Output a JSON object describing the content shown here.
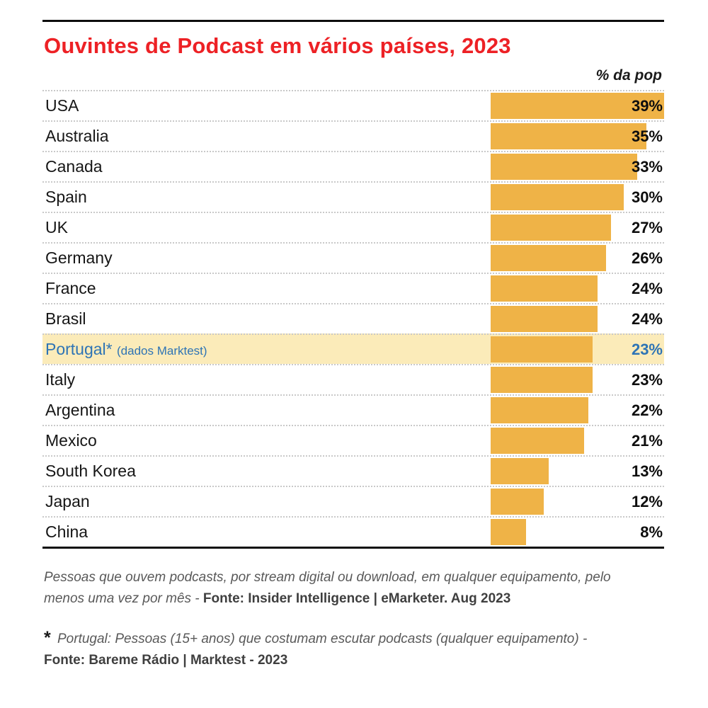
{
  "colors": {
    "title_color": "#ED2125",
    "bar_color": "#EFB347",
    "highlight_bg": "#FBEBB9",
    "accent_blue": "#2E74B5"
  },
  "chart_data": {
    "type": "bar",
    "orientation": "horizontal",
    "title": "Ouvintes de Podcast em vários países, 2023",
    "unit_label": "% da pop",
    "unit": "%",
    "axis_max": 39,
    "legend": "none",
    "grid": "dotted row separators",
    "categories": [
      "USA",
      "Australia",
      "Canada",
      "Spain",
      "UK",
      "Germany",
      "France",
      "Brasil",
      "Portugal*",
      "Italy",
      "Argentina",
      "Mexico",
      "South Korea",
      "Japan",
      "China"
    ],
    "values": [
      39,
      35,
      33,
      30,
      27,
      26,
      24,
      24,
      23,
      23,
      22,
      21,
      13,
      12,
      8
    ],
    "highlighted_category": "Portugal*",
    "rows": [
      {
        "label": "USA",
        "note": "",
        "value": 39,
        "display": "39%",
        "highlighted": false
      },
      {
        "label": "Australia",
        "note": "",
        "value": 35,
        "display": "35%",
        "highlighted": false
      },
      {
        "label": "Canada",
        "note": "",
        "value": 33,
        "display": "33%",
        "highlighted": false
      },
      {
        "label": "Spain",
        "note": "",
        "value": 30,
        "display": "30%",
        "highlighted": false
      },
      {
        "label": "UK",
        "note": "",
        "value": 27,
        "display": "27%",
        "highlighted": false
      },
      {
        "label": "Germany",
        "note": "",
        "value": 26,
        "display": "26%",
        "highlighted": false
      },
      {
        "label": "France",
        "note": "",
        "value": 24,
        "display": "24%",
        "highlighted": false
      },
      {
        "label": "Brasil",
        "note": "",
        "value": 24,
        "display": "24%",
        "highlighted": false
      },
      {
        "label": "Portugal*",
        "note": "(dados Marktest)",
        "value": 23,
        "display": "23%",
        "highlighted": true
      },
      {
        "label": "Italy",
        "note": "",
        "value": 23,
        "display": "23%",
        "highlighted": false
      },
      {
        "label": "Argentina",
        "note": "",
        "value": 22,
        "display": "22%",
        "highlighted": false
      },
      {
        "label": "Mexico",
        "note": "",
        "value": 21,
        "display": "21%",
        "highlighted": false
      },
      {
        "label": "South Korea",
        "note": "",
        "value": 13,
        "display": "13%",
        "highlighted": false
      },
      {
        "label": "Japan",
        "note": "",
        "value": 12,
        "display": "12%",
        "highlighted": false
      },
      {
        "label": "China",
        "note": "",
        "value": 8,
        "display": "8%",
        "highlighted": false
      }
    ]
  },
  "footnotes": {
    "note1_text": "Pessoas que ouvem podcasts, por stream digital ou download, em qualquer equipamento, pelo menos uma vez por mês - ",
    "note1_source": "Fonte: Insider Intelligence | eMarketer. Aug 2023",
    "note2_star": "*",
    "note2_text": " Portugal: Pessoas (15+ anos) que costumam escutar podcasts (qualquer equipamento) - ",
    "note2_source": "Fonte: Bareme Rádio | Marktest - 2023"
  }
}
